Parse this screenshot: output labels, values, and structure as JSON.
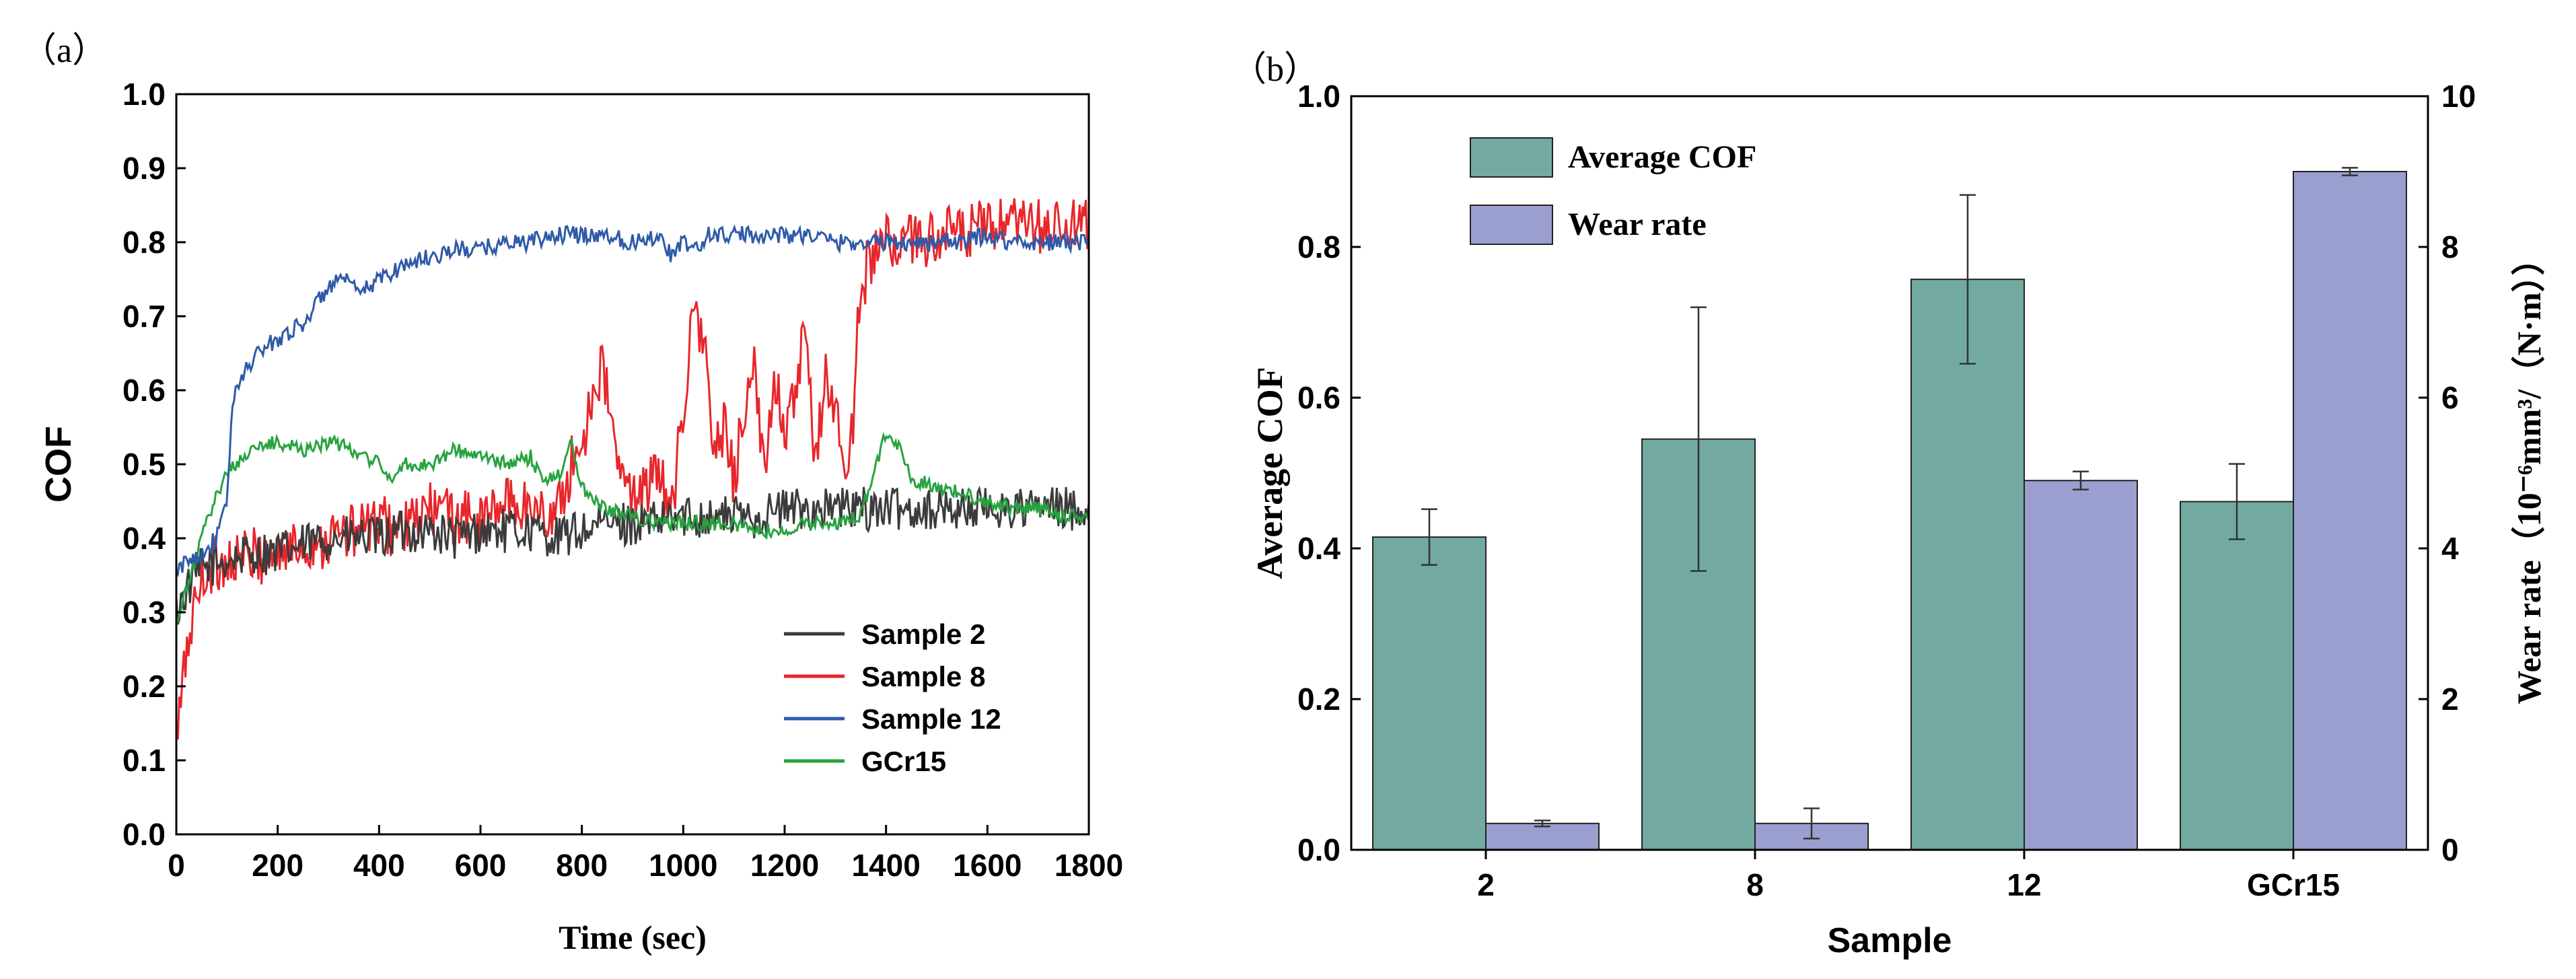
{
  "panel_a_label": "（a）",
  "panel_b_label": "（b）",
  "chart_data": [
    {
      "type": "line",
      "xlabel": "Time (sec)",
      "ylabel": "COF",
      "xlim": [
        0,
        1800
      ],
      "ylim": [
        0.0,
        1.0
      ],
      "xticks": [
        "0",
        "200",
        "400",
        "600",
        "800",
        "1000",
        "1200",
        "1400",
        "1600",
        "1800"
      ],
      "yticks": [
        "0.0",
        "0.1",
        "0.2",
        "0.3",
        "0.4",
        "0.5",
        "0.6",
        "0.7",
        "0.8",
        "0.9",
        "1.0"
      ],
      "legend_position": "bottom-right",
      "series": [
        {
          "name": "Sample 2",
          "color": "#3b3b3b",
          "points": [
            [
              0,
              0.3
            ],
            [
              20,
              0.33
            ],
            [
              50,
              0.36
            ],
            [
              100,
              0.37
            ],
            [
              150,
              0.38
            ],
            [
              200,
              0.38
            ],
            [
              250,
              0.39
            ],
            [
              300,
              0.4
            ],
            [
              350,
              0.4
            ],
            [
              400,
              0.4
            ],
            [
              450,
              0.41
            ],
            [
              500,
              0.41
            ],
            [
              550,
              0.4
            ],
            [
              600,
              0.41
            ],
            [
              650,
              0.41
            ],
            [
              700,
              0.41
            ],
            [
              750,
              0.4
            ],
            [
              800,
              0.41
            ],
            [
              850,
              0.42
            ],
            [
              900,
              0.42
            ],
            [
              950,
              0.42
            ],
            [
              1000,
              0.43
            ],
            [
              1050,
              0.43
            ],
            [
              1100,
              0.43
            ],
            [
              1150,
              0.43
            ],
            [
              1200,
              0.44
            ],
            [
              1250,
              0.44
            ],
            [
              1300,
              0.44
            ],
            [
              1350,
              0.44
            ],
            [
              1400,
              0.44
            ],
            [
              1450,
              0.44
            ],
            [
              1500,
              0.44
            ],
            [
              1550,
              0.44
            ],
            [
              1600,
              0.44
            ],
            [
              1650,
              0.44
            ],
            [
              1700,
              0.44
            ],
            [
              1750,
              0.44
            ],
            [
              1800,
              0.44
            ]
          ],
          "noise": 0.03
        },
        {
          "name": "Sample 8",
          "color": "#e8262b",
          "points": [
            [
              0,
              0.13
            ],
            [
              10,
              0.18
            ],
            [
              20,
              0.25
            ],
            [
              40,
              0.32
            ],
            [
              60,
              0.36
            ],
            [
              100,
              0.37
            ],
            [
              200,
              0.38
            ],
            [
              300,
              0.4
            ],
            [
              400,
              0.42
            ],
            [
              450,
              0.41
            ],
            [
              500,
              0.44
            ],
            [
              550,
              0.43
            ],
            [
              600,
              0.42
            ],
            [
              650,
              0.45
            ],
            [
              700,
              0.44
            ],
            [
              750,
              0.43
            ],
            [
              780,
              0.5
            ],
            [
              800,
              0.52
            ],
            [
              820,
              0.6
            ],
            [
              840,
              0.63
            ],
            [
              860,
              0.55
            ],
            [
              880,
              0.47
            ],
            [
              900,
              0.46
            ],
            [
              950,
              0.48
            ],
            [
              980,
              0.45
            ],
            [
              1000,
              0.58
            ],
            [
              1020,
              0.7
            ],
            [
              1040,
              0.68
            ],
            [
              1060,
              0.5
            ],
            [
              1080,
              0.55
            ],
            [
              1100,
              0.48
            ],
            [
              1120,
              0.58
            ],
            [
              1140,
              0.62
            ],
            [
              1160,
              0.48
            ],
            [
              1180,
              0.63
            ],
            [
              1200,
              0.55
            ],
            [
              1220,
              0.58
            ],
            [
              1240,
              0.68
            ],
            [
              1260,
              0.5
            ],
            [
              1280,
              0.62
            ],
            [
              1300,
              0.58
            ],
            [
              1320,
              0.48
            ],
            [
              1335,
              0.55
            ],
            [
              1345,
              0.7
            ],
            [
              1360,
              0.76
            ],
            [
              1380,
              0.79
            ],
            [
              1400,
              0.8
            ],
            [
              1450,
              0.8
            ],
            [
              1500,
              0.81
            ],
            [
              1550,
              0.81
            ],
            [
              1600,
              0.82
            ],
            [
              1650,
              0.82
            ],
            [
              1700,
              0.82
            ],
            [
              1750,
              0.82
            ],
            [
              1800,
              0.82
            ]
          ],
          "noise": 0.04
        },
        {
          "name": "Sample 12",
          "color": "#2f5aa8",
          "points": [
            [
              0,
              0.35
            ],
            [
              20,
              0.37
            ],
            [
              50,
              0.38
            ],
            [
              80,
              0.4
            ],
            [
              100,
              0.45
            ],
            [
              110,
              0.58
            ],
            [
              130,
              0.62
            ],
            [
              160,
              0.65
            ],
            [
              200,
              0.67
            ],
            [
              250,
              0.69
            ],
            [
              300,
              0.74
            ],
            [
              330,
              0.75
            ],
            [
              360,
              0.73
            ],
            [
              400,
              0.75
            ],
            [
              450,
              0.77
            ],
            [
              500,
              0.78
            ],
            [
              550,
              0.79
            ],
            [
              600,
              0.79
            ],
            [
              650,
              0.8
            ],
            [
              700,
              0.8
            ],
            [
              750,
              0.81
            ],
            [
              800,
              0.81
            ],
            [
              850,
              0.81
            ],
            [
              900,
              0.8
            ],
            [
              950,
              0.81
            ],
            [
              980,
              0.78
            ],
            [
              1000,
              0.8
            ],
            [
              1030,
              0.79
            ],
            [
              1050,
              0.81
            ],
            [
              1100,
              0.81
            ],
            [
              1150,
              0.81
            ],
            [
              1200,
              0.81
            ],
            [
              1250,
              0.81
            ],
            [
              1300,
              0.8
            ],
            [
              1350,
              0.8
            ],
            [
              1400,
              0.8
            ],
            [
              1450,
              0.8
            ],
            [
              1500,
              0.8
            ],
            [
              1550,
              0.8
            ],
            [
              1600,
              0.81
            ],
            [
              1650,
              0.8
            ],
            [
              1700,
              0.8
            ],
            [
              1750,
              0.8
            ],
            [
              1800,
              0.8
            ]
          ],
          "noise": 0.012
        },
        {
          "name": "GCr15",
          "color": "#27a33f",
          "points": [
            [
              0,
              0.28
            ],
            [
              20,
              0.33
            ],
            [
              50,
              0.4
            ],
            [
              80,
              0.46
            ],
            [
              100,
              0.49
            ],
            [
              150,
              0.52
            ],
            [
              200,
              0.53
            ],
            [
              250,
              0.52
            ],
            [
              300,
              0.53
            ],
            [
              350,
              0.52
            ],
            [
              400,
              0.5
            ],
            [
              420,
              0.48
            ],
            [
              450,
              0.5
            ],
            [
              500,
              0.5
            ],
            [
              550,
              0.52
            ],
            [
              600,
              0.51
            ],
            [
              650,
              0.5
            ],
            [
              700,
              0.51
            ],
            [
              720,
              0.48
            ],
            [
              760,
              0.49
            ],
            [
              780,
              0.53
            ],
            [
              800,
              0.47
            ],
            [
              850,
              0.44
            ],
            [
              900,
              0.43
            ],
            [
              950,
              0.42
            ],
            [
              1000,
              0.42
            ],
            [
              1050,
              0.42
            ],
            [
              1100,
              0.42
            ],
            [
              1150,
              0.41
            ],
            [
              1200,
              0.41
            ],
            [
              1250,
              0.42
            ],
            [
              1300,
              0.42
            ],
            [
              1350,
              0.43
            ],
            [
              1380,
              0.5
            ],
            [
              1400,
              0.54
            ],
            [
              1430,
              0.52
            ],
            [
              1450,
              0.48
            ],
            [
              1500,
              0.47
            ],
            [
              1550,
              0.46
            ],
            [
              1600,
              0.45
            ],
            [
              1650,
              0.44
            ],
            [
              1700,
              0.44
            ],
            [
              1750,
              0.43
            ],
            [
              1800,
              0.43
            ]
          ],
          "noise": 0.01
        }
      ]
    },
    {
      "type": "bar",
      "xlabel": "Sample",
      "ylabel": "Average COF",
      "ylabel_right": "Wear rate（10⁻⁶mm³/（N·m））",
      "categories": [
        "2",
        "8",
        "12",
        "GCr15"
      ],
      "ylim": [
        0.0,
        1.0
      ],
      "ylim_right": [
        0,
        10
      ],
      "yticks": [
        "0.0",
        "0.2",
        "0.4",
        "0.6",
        "0.8",
        "1.0"
      ],
      "yticks_right": [
        "0",
        "2",
        "4",
        "6",
        "8",
        "10"
      ],
      "legend_position": "top-left",
      "series": [
        {
          "name": "Average COF",
          "color": "#72aaa1",
          "axis": "left",
          "values": [
            0.415,
            0.545,
            0.757,
            0.462
          ],
          "errors": [
            0.037,
            0.175,
            0.112,
            0.05
          ]
        },
        {
          "name": "Wear rate",
          "color": "#9a9fcf",
          "axis": "right",
          "values": [
            0.35,
            0.35,
            4.9,
            9.0
          ],
          "errors": [
            0.04,
            0.2,
            0.12,
            0.05
          ]
        }
      ]
    }
  ]
}
